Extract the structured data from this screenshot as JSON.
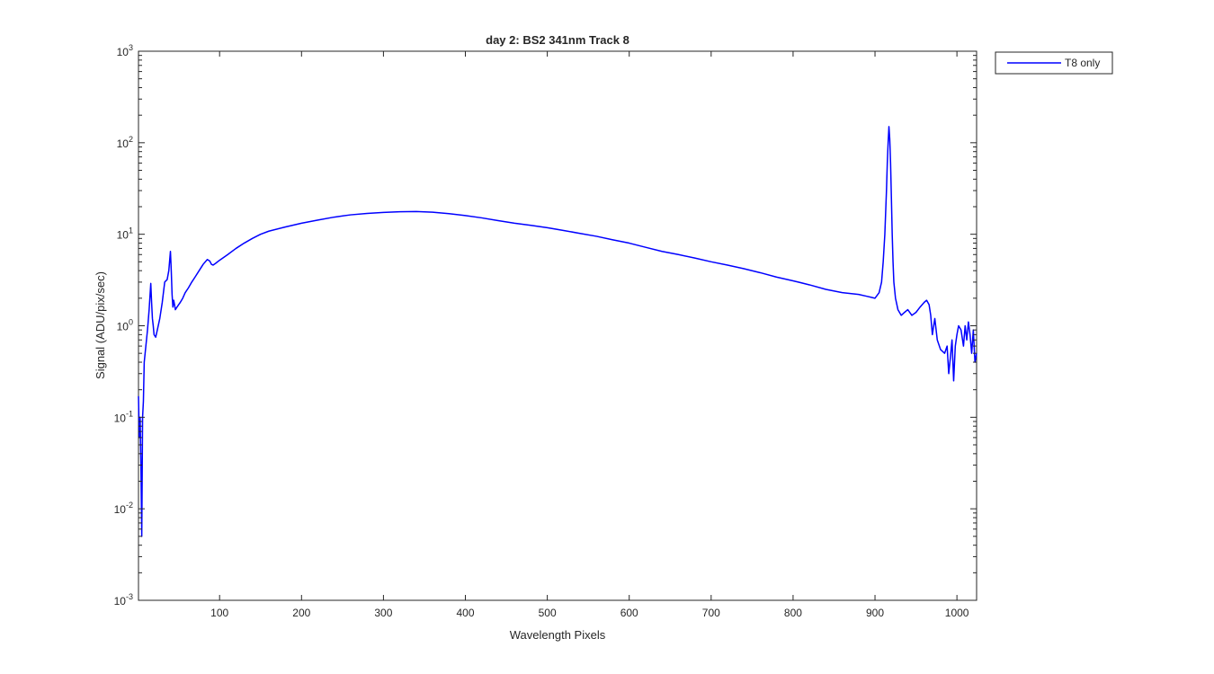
{
  "chart_data": {
    "type": "line",
    "title": "day 2: BS2  341nm  Track 8",
    "xlabel": "Wavelength Pixels",
    "ylabel": "Signal (ADU/pix/sec)",
    "xlim": [
      1,
      1024
    ],
    "ylim": [
      0.001,
      1000
    ],
    "yscale": "log",
    "grid": false,
    "legend_position": "outside-top-right",
    "xticks": [
      100,
      200,
      300,
      400,
      500,
      600,
      700,
      800,
      900,
      1000
    ],
    "xtick_labels": [
      "100",
      "200",
      "300",
      "400",
      "500",
      "600",
      "700",
      "800",
      "900",
      "1000"
    ],
    "yticks": [
      {
        "value": 0.001,
        "base": "10",
        "exp": "-3"
      },
      {
        "value": 0.01,
        "base": "10",
        "exp": "-2"
      },
      {
        "value": 0.1,
        "base": "10",
        "exp": "-1"
      },
      {
        "value": 1,
        "base": "10",
        "exp": "0"
      },
      {
        "value": 10,
        "base": "10",
        "exp": "1"
      },
      {
        "value": 100,
        "base": "10",
        "exp": "2"
      },
      {
        "value": 1000,
        "base": "10",
        "exp": "3"
      }
    ],
    "series": [
      {
        "name": "T8 only",
        "color": "#0000ff",
        "x": [
          1,
          2,
          3,
          4,
          5,
          6,
          7,
          8,
          10,
          12,
          14,
          16,
          17,
          18,
          19,
          20,
          22,
          24,
          27,
          30,
          33,
          36,
          38,
          40,
          41,
          42,
          43,
          44,
          45,
          46,
          48,
          50,
          52,
          55,
          58,
          62,
          66,
          70,
          75,
          80,
          85,
          88,
          90,
          92,
          95,
          100,
          110,
          120,
          130,
          140,
          150,
          160,
          180,
          200,
          220,
          240,
          260,
          280,
          300,
          320,
          340,
          360,
          380,
          400,
          420,
          440,
          460,
          480,
          500,
          520,
          540,
          560,
          580,
          600,
          620,
          640,
          660,
          680,
          700,
          720,
          740,
          760,
          780,
          800,
          820,
          840,
          860,
          880,
          890,
          895,
          900,
          905,
          908,
          910,
          912,
          914,
          915,
          916,
          917,
          918,
          919,
          920,
          921,
          922,
          923,
          925,
          928,
          932,
          936,
          940,
          945,
          950,
          955,
          960,
          963,
          966,
          968,
          970,
          973,
          976,
          980,
          985,
          988,
          990,
          992,
          994,
          996,
          998,
          1000,
          1002,
          1005,
          1008,
          1010,
          1012,
          1014,
          1016,
          1018,
          1020,
          1022,
          1024
        ],
        "values": [
          0.17,
          0.06,
          0.1,
          0.03,
          0.005,
          0.1,
          0.15,
          0.4,
          0.6,
          0.9,
          1.5,
          2.9,
          1.8,
          1.2,
          1.0,
          0.8,
          0.75,
          0.9,
          1.2,
          1.8,
          3.0,
          3.2,
          4.0,
          6.5,
          4.0,
          2.2,
          1.6,
          1.9,
          1.7,
          1.5,
          1.6,
          1.7,
          1.8,
          2.0,
          2.3,
          2.6,
          3.0,
          3.4,
          4.0,
          4.7,
          5.3,
          5.1,
          4.7,
          4.6,
          4.8,
          5.2,
          6.0,
          7.0,
          8.0,
          9.0,
          10.0,
          10.8,
          12.0,
          13.2,
          14.3,
          15.4,
          16.3,
          16.9,
          17.3,
          17.6,
          17.7,
          17.4,
          16.8,
          16.0,
          15.1,
          14.1,
          13.2,
          12.5,
          11.8,
          11.0,
          10.2,
          9.5,
          8.7,
          8.0,
          7.2,
          6.5,
          6.0,
          5.5,
          5.0,
          4.6,
          4.2,
          3.8,
          3.4,
          3.1,
          2.8,
          2.5,
          2.3,
          2.2,
          2.1,
          2.05,
          2.0,
          2.3,
          3.0,
          5.0,
          10.0,
          30.0,
          60.0,
          100.0,
          150.0,
          110.0,
          60.0,
          25.0,
          10.0,
          5.0,
          3.0,
          2.0,
          1.5,
          1.3,
          1.4,
          1.5,
          1.3,
          1.4,
          1.6,
          1.8,
          1.9,
          1.7,
          1.3,
          0.8,
          1.2,
          0.7,
          0.55,
          0.5,
          0.6,
          0.3,
          0.45,
          0.7,
          0.25,
          0.6,
          0.8,
          1.0,
          0.9,
          0.6,
          1.0,
          0.7,
          1.1,
          0.8,
          0.5,
          0.9,
          0.4,
          0.5
        ]
      }
    ]
  }
}
